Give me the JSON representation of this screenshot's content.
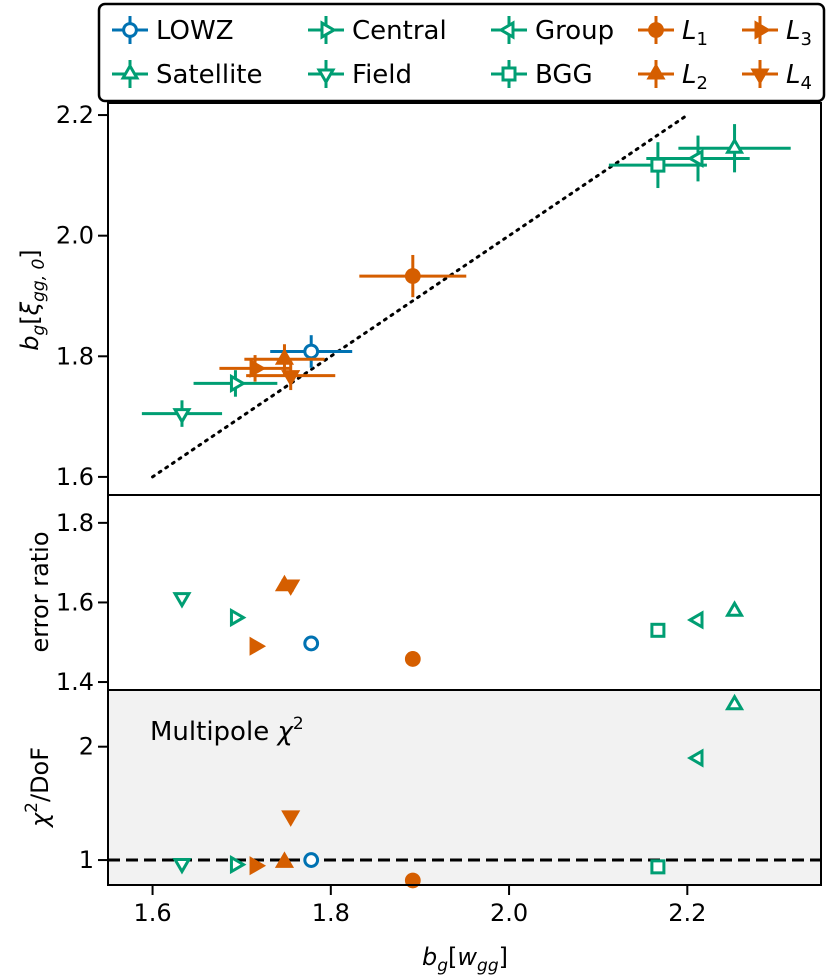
{
  "chart_data": {
    "type": "scatter",
    "xlabel": "b_g[w_gg]",
    "xlim": [
      1.55,
      2.35
    ],
    "xticks": [
      "1.6",
      "1.8",
      "2.0",
      "2.2"
    ],
    "xtick_values": [
      1.6,
      1.8,
      2.0,
      2.2
    ],
    "colors": {
      "blue": "#0072b2",
      "green": "#009e73",
      "orange": "#d55e00"
    },
    "legend": [
      {
        "label": "LOWZ",
        "marker": "circle-open",
        "color": "blue"
      },
      {
        "label": "Central",
        "marker": "tri-right-open",
        "color": "green"
      },
      {
        "label": "Group",
        "marker": "tri-left-open",
        "color": "green"
      },
      {
        "label": "L1",
        "label_main": "L",
        "label_sub": "1",
        "marker": "circle",
        "color": "orange"
      },
      {
        "label": "L3",
        "label_main": "L",
        "label_sub": "3",
        "marker": "tri-right",
        "color": "orange"
      },
      {
        "label": "Satellite",
        "marker": "tri-up-open",
        "color": "green"
      },
      {
        "label": "Field",
        "marker": "tri-down-open",
        "color": "green"
      },
      {
        "label": "BGG",
        "marker": "square-open",
        "color": "green"
      },
      {
        "label": "L2",
        "label_main": "L",
        "label_sub": "2",
        "marker": "tri-up",
        "color": "orange"
      },
      {
        "label": "L4",
        "label_main": "L",
        "label_sub": "4",
        "marker": "tri-down",
        "color": "orange"
      }
    ],
    "legend_placement": "top",
    "panels": [
      {
        "id": "bias",
        "ylabel": "b_g[ξ_gg,0]",
        "ylim": [
          1.57,
          2.22
        ],
        "yticks": [
          "1.6",
          "1.8",
          "2.0",
          "2.2"
        ],
        "ytick_values": [
          1.6,
          1.8,
          2.0,
          2.2
        ],
        "reference_line": {
          "style": "dotted",
          "x": [
            1.6,
            2.2
          ],
          "y": [
            1.6,
            2.2
          ]
        },
        "points": [
          {
            "name": "LOWZ",
            "x": 1.778,
            "y": 1.808,
            "xerr": 0.046,
            "yerr": 0.027
          },
          {
            "name": "Central",
            "x": 1.693,
            "y": 1.755,
            "xerr": 0.047,
            "yerr": 0.022
          },
          {
            "name": "Group",
            "x": 2.212,
            "y": 2.128,
            "xerr": 0.058,
            "yerr": 0.038
          },
          {
            "name": "Satellite",
            "x": 2.253,
            "y": 2.145,
            "xerr": 0.063,
            "yerr": 0.04
          },
          {
            "name": "Field",
            "x": 1.633,
            "y": 1.705,
            "xerr": 0.045,
            "yerr": 0.022
          },
          {
            "name": "BGG",
            "x": 2.167,
            "y": 2.117,
            "xerr": 0.055,
            "yerr": 0.038
          },
          {
            "name": "L1",
            "x": 1.892,
            "y": 1.933,
            "xerr": 0.06,
            "yerr": 0.035
          },
          {
            "name": "L2",
            "x": 1.748,
            "y": 1.795,
            "xerr": 0.045,
            "yerr": 0.025
          },
          {
            "name": "L3",
            "x": 1.715,
            "y": 1.78,
            "xerr": 0.04,
            "yerr": 0.022
          },
          {
            "name": "L4",
            "x": 1.755,
            "y": 1.768,
            "xerr": 0.05,
            "yerr": 0.024
          }
        ]
      },
      {
        "id": "error-ratio",
        "ylabel": "error ratio",
        "ylim": [
          1.38,
          1.87
        ],
        "yticks": [
          "1.4",
          "1.6",
          "1.8"
        ],
        "ytick_values": [
          1.4,
          1.6,
          1.8
        ],
        "points": [
          {
            "name": "LOWZ",
            "x": 1.778,
            "y": 1.497
          },
          {
            "name": "Central",
            "x": 1.693,
            "y": 1.562
          },
          {
            "name": "Group",
            "x": 2.212,
            "y": 1.556
          },
          {
            "name": "Satellite",
            "x": 2.253,
            "y": 1.578
          },
          {
            "name": "Field",
            "x": 1.633,
            "y": 1.612
          },
          {
            "name": "BGG",
            "x": 2.167,
            "y": 1.53
          },
          {
            "name": "L1",
            "x": 1.892,
            "y": 1.458
          },
          {
            "name": "L2",
            "x": 1.748,
            "y": 1.642
          },
          {
            "name": "L3",
            "x": 1.715,
            "y": 1.49
          },
          {
            "name": "L4",
            "x": 1.755,
            "y": 1.644
          }
        ]
      },
      {
        "id": "chi2",
        "ylabel": "χ²/DoF",
        "annotation": "Multipole χ²",
        "ylim": [
          0.78,
          2.5
        ],
        "yticks": [
          "1",
          "2"
        ],
        "ytick_values": [
          1,
          2
        ],
        "reference_line": {
          "style": "dashed",
          "y": 1
        },
        "points": [
          {
            "name": "LOWZ",
            "x": 1.778,
            "y": 1.0
          },
          {
            "name": "Central",
            "x": 1.693,
            "y": 0.96
          },
          {
            "name": "Group",
            "x": 2.212,
            "y": 1.9
          },
          {
            "name": "Satellite",
            "x": 2.253,
            "y": 2.37
          },
          {
            "name": "Field",
            "x": 1.633,
            "y": 0.97
          },
          {
            "name": "BGG",
            "x": 2.167,
            "y": 0.94
          },
          {
            "name": "L1",
            "x": 1.892,
            "y": 0.82
          },
          {
            "name": "L2",
            "x": 1.748,
            "y": 0.98
          },
          {
            "name": "L3",
            "x": 1.715,
            "y": 0.95
          },
          {
            "name": "L4",
            "x": 1.755,
            "y": 1.39
          }
        ]
      }
    ]
  }
}
